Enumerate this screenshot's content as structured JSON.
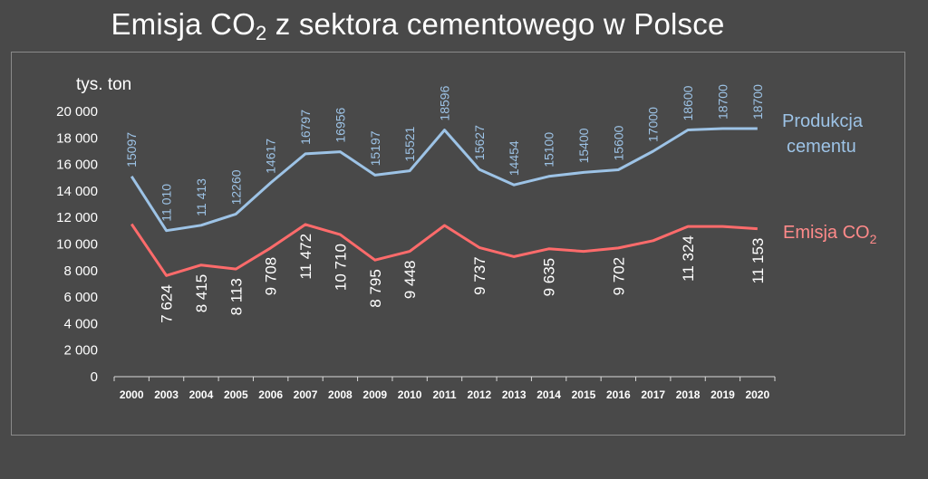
{
  "title": {
    "text": "Emisja CO",
    "sub": "2",
    "rest": " z sektora cementowego w Polsce"
  },
  "colors": {
    "background": "#494949",
    "production": "#9dc3e6",
    "emission": "#ff6b6b",
    "text": "#ffffff"
  },
  "chart_data": {
    "type": "line",
    "ylabel": "tys. ton",
    "ylim": [
      0,
      20000
    ],
    "yticks": [
      0,
      2000,
      4000,
      6000,
      8000,
      10000,
      12000,
      14000,
      16000,
      18000,
      20000
    ],
    "ytick_labels": [
      "0",
      "2 000",
      "4 000",
      "6 000",
      "8 000",
      "10 000",
      "12 000",
      "14 000",
      "16 000",
      "18 000",
      "20 000"
    ],
    "categories": [
      "2000",
      "2003",
      "2004",
      "2005",
      "2006",
      "2007",
      "2008",
      "2009",
      "2010",
      "2011",
      "2012",
      "2013",
      "2014",
      "2015",
      "2016",
      "2017",
      "2018",
      "2019",
      "2020"
    ],
    "grid": false,
    "legend": "right",
    "series": [
      {
        "name": "Produkcja cementu",
        "legend_lines": [
          "Produkcja",
          "cementu"
        ],
        "values": [
          15097,
          11010,
          11413,
          12260,
          14617,
          16797,
          16956,
          15197,
          15521,
          18596,
          15627,
          14454,
          15100,
          15400,
          15600,
          17000,
          18600,
          18700,
          18700
        ],
        "labels": [
          "15097",
          "11 010",
          "11 413",
          "12260",
          "14617",
          "16797",
          "16956",
          "15197",
          "15521",
          "18596",
          "15627",
          "14454",
          "15100",
          "15400",
          "15600",
          "17000",
          "18600",
          "18700",
          "18700"
        ]
      },
      {
        "name": "Emisja CO2",
        "legend_text": "Emisja CO",
        "legend_sub": "2",
        "values": [
          11500,
          7624,
          8415,
          8113,
          9708,
          11472,
          10710,
          8795,
          9448,
          11400,
          9737,
          9050,
          9635,
          9450,
          9702,
          10250,
          11324,
          11324,
          11153
        ],
        "labels": [
          "",
          "7 624",
          "8 415",
          "8 113",
          "9 708",
          "11 472",
          "10 710",
          "8 795",
          "9 448",
          "",
          "9 737",
          "",
          "9 635",
          "",
          "9 702",
          "",
          "11 324",
          "",
          "11 153"
        ]
      }
    ]
  }
}
